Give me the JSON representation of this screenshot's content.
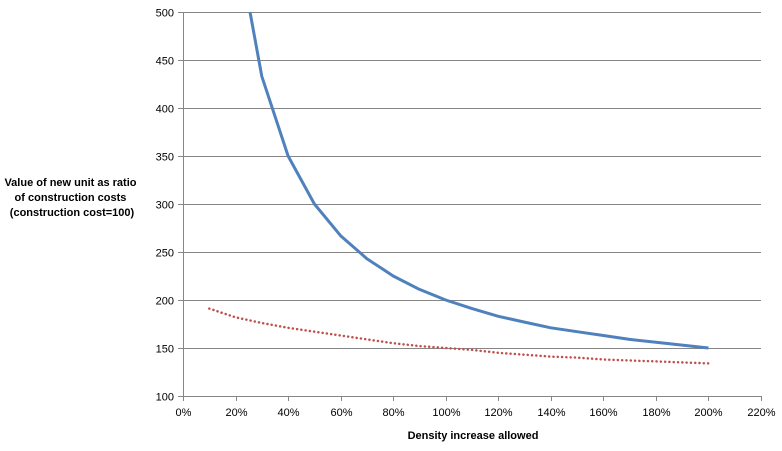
{
  "chart_data": {
    "type": "line",
    "title": "",
    "xlabel": "Density increase allowed",
    "ylabel_lines": [
      "Value of new unit as ratio",
      "of construction costs",
      "(construction cost=100)"
    ],
    "xlim": [
      0,
      220
    ],
    "ylim": [
      100,
      500
    ],
    "x_ticks": [
      0,
      20,
      40,
      60,
      80,
      100,
      120,
      140,
      160,
      180,
      200,
      220
    ],
    "x_tick_labels": [
      "0%",
      "20%",
      "40%",
      "60%",
      "80%",
      "100%",
      "120%",
      "140%",
      "160%",
      "180%",
      "200%",
      "220%"
    ],
    "y_ticks": [
      100,
      150,
      200,
      250,
      300,
      350,
      400,
      450,
      500
    ],
    "y_tick_labels": [
      "100",
      "150",
      "200",
      "250",
      "300",
      "350",
      "400",
      "450",
      "500"
    ],
    "grid": "horizontal",
    "legend": "none",
    "series": [
      {
        "color": "#4f81bd",
        "style": "solid",
        "x": [
          25.5,
          30,
          40,
          50,
          60,
          70,
          80,
          90,
          100,
          110,
          120,
          130,
          140,
          150,
          160,
          170,
          180,
          190,
          200
        ],
        "values": [
          500,
          433,
          350,
          300,
          267,
          243,
          225,
          211,
          200,
          191,
          183,
          177,
          171,
          167,
          163,
          159,
          156,
          153,
          150
        ]
      },
      {
        "color": "#c0504d",
        "style": "dotted",
        "x": [
          10,
          20,
          30,
          40,
          50,
          60,
          70,
          80,
          90,
          100,
          110,
          120,
          130,
          140,
          150,
          160,
          170,
          180,
          190,
          200
        ],
        "values": [
          191,
          182,
          176,
          171,
          167,
          163,
          159,
          155,
          152,
          150,
          148,
          145,
          143,
          141,
          140,
          138,
          137,
          136,
          135,
          134
        ]
      }
    ]
  }
}
